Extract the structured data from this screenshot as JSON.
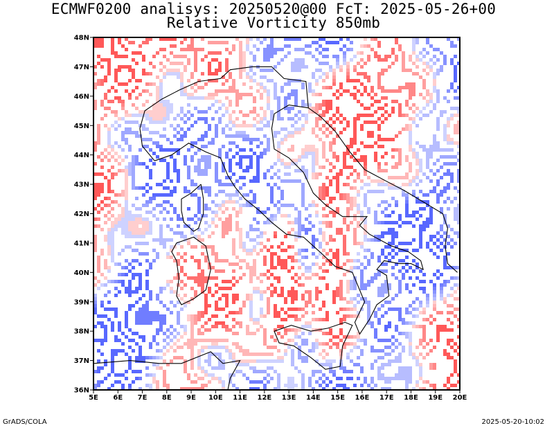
{
  "title": {
    "line1": "ECMWF0200 analisys: 20250520@00 FcT: 2025-05-26+00",
    "line2": "Relative Vorticity 850mb"
  },
  "footer": {
    "left": "GrADS/COLA",
    "right": "2025-05-20-10:02"
  },
  "map": {
    "lon_range": [
      5,
      20
    ],
    "lat_range": [
      36,
      48
    ],
    "lon_labels": [
      "5E",
      "6E",
      "7E",
      "8E",
      "9E",
      "10E",
      "11E",
      "12E",
      "13E",
      "14E",
      "15E",
      "16E",
      "17E",
      "18E",
      "19E",
      "20E"
    ],
    "lat_labels": [
      "36N",
      "37N",
      "38N",
      "39N",
      "40N",
      "41N",
      "42N",
      "43N",
      "44N",
      "45N",
      "46N",
      "47N",
      "48N"
    ],
    "colors": {
      "positive_contours": "#ff3b3b",
      "negative_contours": "#3b4dff",
      "borders": "#000000",
      "frame": "#000000"
    }
  }
}
